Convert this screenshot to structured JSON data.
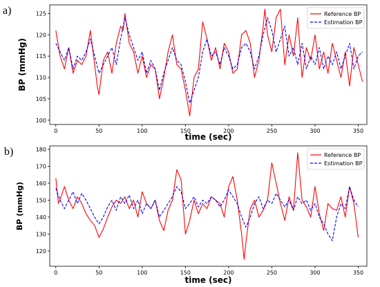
{
  "chart_data": [
    {
      "panel_label": "a)",
      "type": "line",
      "xlabel": "time (sec)",
      "ylabel": "BP (mmHg)",
      "xlim": [
        -7,
        360
      ],
      "ylim": [
        99,
        127
      ],
      "xticks": [
        0,
        50,
        100,
        150,
        200,
        250,
        300,
        350
      ],
      "yticks": [
        100,
        105,
        110,
        115,
        120,
        125
      ],
      "legend_position": "top-right",
      "series": [
        {
          "name": "Reference BP",
          "color": "#ff0000",
          "dash": "solid",
          "x": [
            0,
            5,
            10,
            15,
            20,
            25,
            30,
            35,
            40,
            45,
            48,
            50,
            55,
            60,
            65,
            70,
            75,
            78,
            80,
            85,
            90,
            95,
            100,
            105,
            110,
            115,
            120,
            125,
            130,
            135,
            140,
            145,
            150,
            155,
            160,
            165,
            170,
            175,
            180,
            185,
            190,
            195,
            200,
            205,
            210,
            215,
            220,
            225,
            230,
            235,
            240,
            242,
            245,
            250,
            255,
            260,
            265,
            270,
            275,
            280,
            285,
            290,
            295,
            300,
            305,
            310,
            315,
            320,
            325,
            330,
            335,
            340,
            345,
            350,
            355
          ],
          "y": [
            121,
            115,
            112,
            117,
            111,
            114,
            113,
            115,
            121,
            113,
            108,
            106,
            114,
            116,
            111,
            118,
            122,
            121,
            125,
            118,
            116,
            111,
            115,
            110,
            113,
            112,
            105,
            110,
            116,
            120,
            113,
            112,
            107,
            101,
            110,
            112,
            123,
            119,
            114,
            117,
            112,
            118,
            116,
            111,
            112,
            120,
            121,
            118,
            110,
            114,
            122,
            126,
            120,
            116,
            124,
            126,
            113,
            120,
            115,
            124,
            110,
            117,
            114,
            120,
            112,
            116,
            111,
            118,
            114,
            110,
            116,
            108,
            117,
            113,
            109
          ]
        },
        {
          "name": "Estimation BP",
          "color": "#0000ff",
          "dash": "dashed",
          "x": [
            0,
            5,
            10,
            15,
            20,
            25,
            30,
            35,
            40,
            45,
            50,
            55,
            60,
            65,
            70,
            75,
            80,
            85,
            90,
            95,
            100,
            105,
            110,
            115,
            120,
            125,
            130,
            135,
            140,
            145,
            150,
            155,
            160,
            165,
            170,
            175,
            180,
            185,
            190,
            195,
            200,
            205,
            210,
            215,
            220,
            225,
            230,
            235,
            240,
            245,
            250,
            255,
            260,
            265,
            270,
            275,
            280,
            285,
            290,
            295,
            300,
            305,
            310,
            315,
            320,
            325,
            330,
            335,
            340,
            345,
            350,
            355
          ],
          "y": [
            118,
            116,
            114,
            117,
            112,
            115,
            114,
            116,
            119,
            115,
            111,
            113,
            115,
            117,
            113,
            119,
            124,
            120,
            117,
            114,
            116,
            111,
            114,
            112,
            107,
            111,
            114,
            117,
            114,
            113,
            109,
            104,
            107,
            110,
            116,
            119,
            115,
            116,
            113,
            117,
            115,
            112,
            113,
            117,
            118,
            116,
            112,
            115,
            120,
            124,
            121,
            116,
            119,
            122,
            115,
            117,
            113,
            118,
            112,
            115,
            113,
            117,
            112,
            115,
            113,
            116,
            112,
            115,
            118,
            112,
            115,
            116
          ]
        }
      ]
    },
    {
      "panel_label": "b)",
      "type": "line",
      "xlabel": "time (sec)",
      "ylabel": "BP (mmHg)",
      "xlim": [
        -7,
        360
      ],
      "ylim": [
        111,
        182
      ],
      "xticks": [
        0,
        50,
        100,
        150,
        200,
        250,
        300,
        350
      ],
      "yticks": [
        120,
        130,
        140,
        150,
        160,
        170,
        180
      ],
      "legend_position": "top-right",
      "series": [
        {
          "name": "Reference BP",
          "color": "#ff0000",
          "dash": "solid",
          "x": [
            0,
            3,
            6,
            10,
            15,
            20,
            25,
            30,
            35,
            40,
            45,
            50,
            55,
            60,
            65,
            70,
            75,
            80,
            85,
            90,
            95,
            100,
            105,
            110,
            115,
            120,
            125,
            130,
            135,
            140,
            145,
            150,
            155,
            160,
            165,
            170,
            175,
            180,
            185,
            190,
            195,
            200,
            205,
            210,
            215,
            218,
            220,
            225,
            230,
            235,
            240,
            245,
            250,
            255,
            260,
            265,
            270,
            275,
            280,
            285,
            290,
            295,
            300,
            305,
            310,
            315,
            320,
            325,
            330,
            335,
            340,
            345,
            350
          ],
          "y": [
            163,
            148,
            152,
            158,
            150,
            145,
            152,
            148,
            142,
            138,
            135,
            128,
            133,
            140,
            146,
            150,
            148,
            152,
            145,
            150,
            140,
            155,
            148,
            145,
            150,
            138,
            132,
            144,
            150,
            168,
            162,
            130,
            138,
            150,
            142,
            148,
            145,
            152,
            150,
            148,
            140,
            158,
            164,
            150,
            130,
            115,
            125,
            145,
            150,
            140,
            144,
            150,
            172,
            160,
            148,
            138,
            152,
            144,
            178,
            150,
            146,
            140,
            158,
            142,
            132,
            148,
            145,
            144,
            152,
            140,
            158,
            148,
            128
          ]
        },
        {
          "name": "Estimation BP",
          "color": "#0000ff",
          "dash": "dashed",
          "x": [
            0,
            5,
            10,
            15,
            20,
            25,
            30,
            35,
            40,
            45,
            50,
            55,
            60,
            65,
            70,
            75,
            80,
            85,
            90,
            95,
            100,
            105,
            110,
            115,
            120,
            125,
            130,
            135,
            140,
            145,
            150,
            155,
            160,
            165,
            170,
            175,
            180,
            185,
            190,
            195,
            200,
            205,
            210,
            215,
            220,
            225,
            230,
            235,
            240,
            245,
            250,
            255,
            260,
            265,
            270,
            275,
            280,
            285,
            290,
            295,
            300,
            305,
            310,
            315,
            320,
            325,
            330,
            335,
            340,
            345,
            350
          ],
          "y": [
            157,
            150,
            145,
            150,
            155,
            148,
            154,
            150,
            145,
            140,
            136,
            140,
            146,
            150,
            144,
            152,
            148,
            153,
            145,
            150,
            142,
            148,
            145,
            150,
            140,
            144,
            148,
            152,
            158,
            155,
            145,
            148,
            152,
            146,
            150,
            148,
            152,
            150,
            146,
            150,
            156,
            152,
            148,
            140,
            134,
            140,
            148,
            152,
            145,
            150,
            148,
            154,
            150,
            146,
            150,
            144,
            152,
            148,
            150,
            144,
            148,
            140,
            136,
            130,
            126,
            140,
            148,
            145,
            158,
            150,
            146
          ]
        }
      ]
    }
  ]
}
